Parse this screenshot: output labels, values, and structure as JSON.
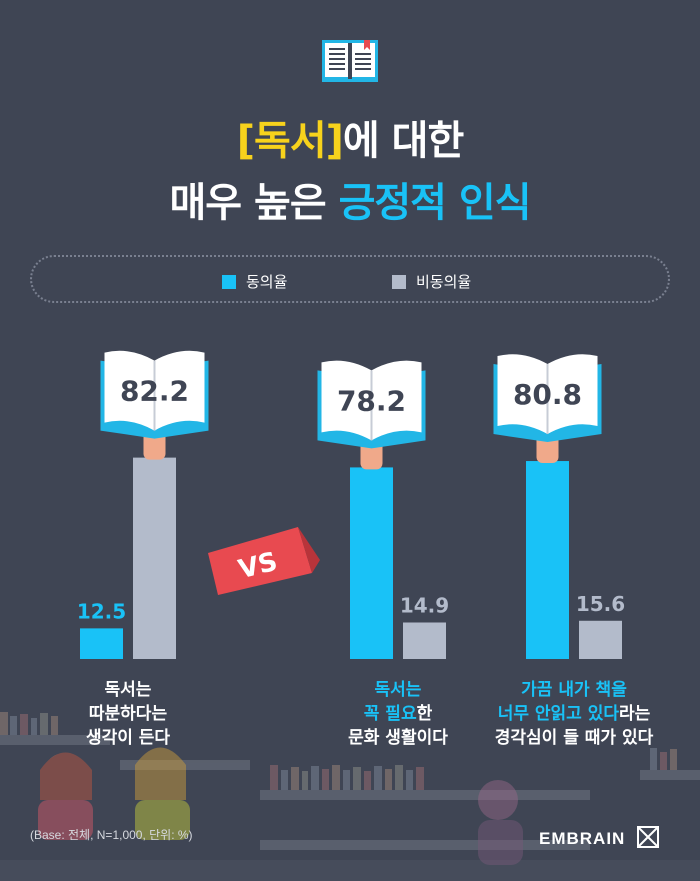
{
  "title": {
    "line1_highlight": "[독서]",
    "line1_rest": "에 대한",
    "line2_plain": "매우 높은 ",
    "line2_highlight": "긍정적 인식"
  },
  "legend": {
    "agree_label": "동의율",
    "disagree_label": "비동의율"
  },
  "vs_label": "VS",
  "categories": [
    {
      "lines": [
        [
          {
            "t": "독서는",
            "hl": false
          }
        ],
        [
          {
            "t": "따분하다는",
            "hl": false
          }
        ],
        [
          {
            "t": "생각이 든다",
            "hl": false
          }
        ]
      ]
    },
    {
      "lines": [
        [
          {
            "t": "독서는",
            "hl": true
          }
        ],
        [
          {
            "t": "꼭 필요",
            "hl": true
          },
          {
            "t": "한",
            "hl": false
          }
        ],
        [
          {
            "t": "문화 생활이다",
            "hl": false
          }
        ]
      ]
    },
    {
      "lines": [
        [
          {
            "t": "가끔 내가 책을",
            "hl": true
          }
        ],
        [
          {
            "t": "너무 안읽고 있다",
            "hl": true
          },
          {
            "t": "라는",
            "hl": false
          }
        ],
        [
          {
            "t": "경각심이 들 때가 있다",
            "hl": false
          }
        ]
      ]
    }
  ],
  "note": "(Base: 전체, N=1,000, 단위: %)",
  "brand": "EMBRAIN",
  "colors": {
    "agree": "#19c2f7",
    "disagree": "#b3bbcb",
    "background": "#3f4554",
    "highlight_yellow": "#f7d21c",
    "vs_badge": "#e84a50"
  },
  "chart_data": {
    "type": "bar",
    "categories": [
      "독서는 따분하다는 생각이 든다",
      "독서는 꼭 필요한 문화 생활이다",
      "가끔 내가 책을 너무 안읽고 있다라는 경각심이 들 때가 있다"
    ],
    "series": [
      {
        "name": "동의율",
        "values": [
          12.5,
          78.2,
          80.8
        ]
      },
      {
        "name": "비동의율",
        "values": [
          82.2,
          14.9,
          15.6
        ]
      }
    ],
    "ylim": [
      0,
      100
    ],
    "legend": "top-center",
    "grid": false
  }
}
